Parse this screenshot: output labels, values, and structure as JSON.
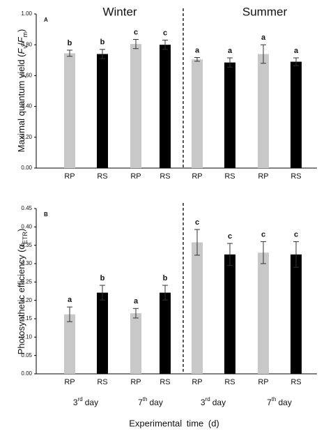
{
  "chart_data": [
    {
      "type": "bar",
      "panel": "A",
      "seasons": [
        "Winter",
        "Summer"
      ],
      "ylabel_parts": [
        "Maximal quantum yield (",
        "F",
        "v",
        "/",
        "F",
        "m",
        ")"
      ],
      "categories": [
        "RP",
        "RS",
        "RP",
        "RS",
        "RP",
        "RS",
        "RP",
        "RS"
      ],
      "values": [
        0.745,
        0.74,
        0.805,
        0.8,
        0.705,
        0.685,
        0.74,
        0.69
      ],
      "errors": [
        0.02,
        0.03,
        0.03,
        0.03,
        0.012,
        0.03,
        0.06,
        0.025
      ],
      "annotations": [
        "b",
        "b",
        "c",
        "c",
        "a",
        "a",
        "a",
        "a"
      ],
      "colors": [
        "#c8c8c8",
        "#000000",
        "#c8c8c8",
        "#000000",
        "#c8c8c8",
        "#000000",
        "#c8c8c8",
        "#000000"
      ],
      "ylim": [
        0,
        1
      ],
      "yticks": [
        {
          "value": 0,
          "label": "0.00"
        },
        {
          "value": 0.2,
          "label": "0.20"
        },
        {
          "value": 0.4,
          "label": "0.40"
        },
        {
          "value": 0.6,
          "label": "0.60"
        },
        {
          "value": 0.8,
          "label": "0.80"
        },
        {
          "value": 1,
          "label": "1.00"
        }
      ]
    },
    {
      "type": "bar",
      "panel": "B",
      "ylabel_parts": [
        "Photosynthetic efficiency (α",
        "ETR",
        ")"
      ],
      "categories": [
        "RP",
        "RS",
        "RP",
        "RS",
        "RP",
        "RS",
        "RP",
        "RS"
      ],
      "values": [
        0.162,
        0.221,
        0.165,
        0.221,
        0.358,
        0.325,
        0.33,
        0.325
      ],
      "errors": [
        0.02,
        0.02,
        0.013,
        0.02,
        0.035,
        0.03,
        0.03,
        0.035
      ],
      "annotations": [
        "a",
        "b",
        "a",
        "b",
        "c",
        "c",
        "c",
        "c"
      ],
      "colors": [
        "#c8c8c8",
        "#000000",
        "#c8c8c8",
        "#000000",
        "#c8c8c8",
        "#000000",
        "#c8c8c8",
        "#000000"
      ],
      "groups": [
        {
          "n": "3",
          "sup": "rd",
          "unit": "day"
        },
        {
          "n": "7",
          "sup": "th",
          "unit": "day"
        },
        {
          "n": "3",
          "sup": "rd",
          "unit": "day"
        },
        {
          "n": "7",
          "sup": "th",
          "unit": "day"
        }
      ],
      "xlabel": "Experimental time (d)",
      "ylim": [
        0,
        0.45
      ],
      "yticks": [
        {
          "value": 0,
          "label": "0.00"
        },
        0.05,
        {
          "value": 0.1,
          "label": "0.10"
        },
        0.15,
        {
          "value": 0.2,
          "label": "0.20"
        },
        0.25,
        {
          "value": 0.3,
          "label": "0.30"
        },
        0.35,
        {
          "value": 0.4,
          "label": "0.40"
        },
        0.45
      ]
    }
  ]
}
